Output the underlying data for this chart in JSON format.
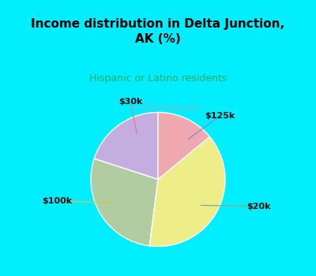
{
  "title": "Income distribution in Delta Junction,\nAK (%)",
  "subtitle": "Hispanic or Latino residents",
  "title_color": "#000000",
  "subtitle_color": "#20aa60",
  "labels": [
    "$125k",
    "$20k",
    "$100k",
    "$30k"
  ],
  "sizes": [
    20,
    28,
    38,
    14
  ],
  "colors": [
    "#c4aee0",
    "#b0cca0",
    "#eeee88",
    "#f0a8b0"
  ],
  "startangle": 90,
  "bg_color": "#00eeff",
  "chart_bg": "#ffffff",
  "watermark": "City-Data.com"
}
